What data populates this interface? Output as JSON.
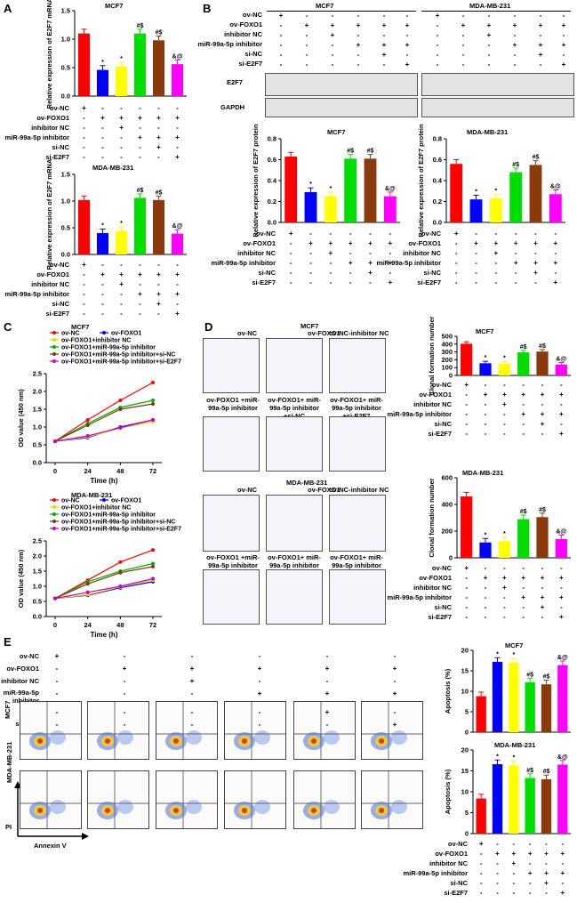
{
  "panels": {
    "A": "A",
    "B": "B",
    "C": "C",
    "D": "D",
    "E": "E"
  },
  "colors": {
    "nc": "#ff0000",
    "foxo1": "#0000ff",
    "inhnc": "#ffff00",
    "inh": "#00dd00",
    "sinc": "#8b3a0e",
    "sie2f7": "#ff00ff"
  },
  "row_labels": {
    "ov_nc": "ov-NC",
    "ov_foxo1": "ov-FOXO1",
    "inh_nc": "inhibitor NC",
    "inh": "miR-99a-5p inhibitor",
    "si_nc": "si-NC",
    "si_e2f7": "si-E2F7"
  },
  "lines": {
    "MCF7": "MCF7",
    "MDA": "MDA-MB-231"
  },
  "A": {
    "ylabel": "Relative expression of E2F7 mRNA",
    "mcf7": {
      "values": [
        1.1,
        0.46,
        0.52,
        1.1,
        0.98,
        0.56
      ],
      "ticks": [
        "0.0",
        "0.5",
        "1.0",
        "1.5"
      ],
      "ann": [
        "",
        "*",
        "*",
        "#$",
        "#$",
        "&@"
      ]
    },
    "mda": {
      "values": [
        1.02,
        0.4,
        0.44,
        1.06,
        1.02,
        0.39
      ],
      "ticks": [
        "0.0",
        "0.5",
        "1.0",
        "1.5"
      ],
      "ann": [
        "",
        "*",
        "*",
        "#$",
        "#$",
        "&@"
      ]
    }
  },
  "B": {
    "bands": [
      "E2F7",
      "GAPDH"
    ],
    "ylabel": "Relative expression of E2F7 protein",
    "mcf7": {
      "values": [
        0.63,
        0.29,
        0.25,
        0.61,
        0.61,
        0.25
      ],
      "ticks": [
        "0.0",
        "0.2",
        "0.4",
        "0.6",
        "0.8"
      ],
      "ann": [
        "",
        "*",
        "*",
        "#$",
        "#$",
        "&@"
      ]
    },
    "mda": {
      "values": [
        0.56,
        0.22,
        0.23,
        0.48,
        0.55,
        0.27
      ],
      "ticks": [
        "0.0",
        "0.2",
        "0.4",
        "0.6",
        "0.8"
      ],
      "ann": [
        "",
        "*",
        "*",
        "#$",
        "#$",
        "&@"
      ]
    }
  },
  "C": {
    "xlabel": "Time (h)",
    "ylabel": "OD value (450 nm)",
    "xticks": [
      "0",
      "24",
      "48",
      "72"
    ],
    "yticks": [
      "0.0",
      "0.5",
      "1.0",
      "1.5",
      "2.0",
      "2.5"
    ],
    "legend": [
      "ov-NC",
      "ov-FOXO1",
      "ov-FOXO1+inhibitor NC",
      "ov-FOXO1+miR-99a-5p inhibitor",
      "ov-FOXO1+miR-99a-5p inhibitor+si-NC",
      "ov-FOXO1+miR-99a-5p inhibitor+si-E2F7"
    ],
    "mcf7_series": [
      [
        0.6,
        1.2,
        1.75,
        2.25
      ],
      [
        0.6,
        0.7,
        1.0,
        1.2
      ],
      [
        0.6,
        0.72,
        0.97,
        1.15
      ],
      [
        0.6,
        1.1,
        1.55,
        1.75
      ],
      [
        0.6,
        1.05,
        1.5,
        1.65
      ],
      [
        0.6,
        0.75,
        0.98,
        1.2
      ]
    ],
    "mda_series": [
      [
        0.6,
        1.2,
        1.8,
        2.2
      ],
      [
        0.6,
        0.7,
        0.95,
        1.15
      ],
      [
        0.6,
        0.72,
        0.98,
        1.2
      ],
      [
        0.6,
        1.15,
        1.5,
        1.75
      ],
      [
        0.6,
        1.08,
        1.45,
        1.65
      ],
      [
        0.6,
        0.8,
        1.0,
        1.25
      ]
    ]
  },
  "D": {
    "top_labels": [
      "ov-NC",
      "ov-FOXO1",
      "ov-NC-inhibitor NC"
    ],
    "bottom_labels": [
      "ov-FOXO1 +miR-99a-5p inhibitor",
      "ov-FOXO1+ miR-99a-5p inhibitor +si-NC",
      "ov-FOXO1+ miR-99a-5p inhibitor +si-E2F7"
    ],
    "ylabel": "Clonal formation number",
    "mcf7": {
      "values": [
        405,
        155,
        150,
        295,
        305,
        140
      ],
      "ticks": [
        "0",
        "100",
        "200",
        "300",
        "400",
        "500"
      ],
      "ann": [
        "",
        "*",
        "*",
        "#$",
        "#$",
        "&@"
      ]
    },
    "mda": {
      "values": [
        460,
        115,
        125,
        290,
        305,
        140
      ],
      "ticks": [
        "0",
        "200",
        "400",
        "600"
      ],
      "ann": [
        "",
        "*",
        "*",
        "#$",
        "#$",
        "&@"
      ]
    }
  },
  "E": {
    "inh_label": "miR-99a-5p inhibitor",
    "ylabel": "Apoptosis (%)",
    "pi": "PI",
    "annexin": "Annexin V",
    "mcf7": {
      "values": [
        8.8,
        17.2,
        17.0,
        12.2,
        11.7,
        16.4
      ],
      "ticks": [
        "0",
        "5",
        "10",
        "15",
        "20"
      ],
      "ann": [
        "",
        "*",
        "*",
        "#$",
        "#$",
        "&@"
      ]
    },
    "mda": {
      "values": [
        8.4,
        16.6,
        16.3,
        13.3,
        13.0,
        16.5
      ],
      "ticks": [
        "0",
        "5",
        "10",
        "15",
        "20"
      ],
      "ann": [
        "",
        "*",
        "*",
        "#$",
        "#$",
        "&@"
      ]
    }
  },
  "signs": {
    "A": [
      [
        "+",
        "-",
        "-",
        "-",
        "-",
        "-"
      ],
      [
        "-",
        "+",
        "+",
        "+",
        "+",
        "+"
      ],
      [
        "-",
        "-",
        "+",
        "-",
        "-",
        "-"
      ],
      [
        "-",
        "-",
        "-",
        "+",
        "+",
        "+"
      ],
      [
        "-",
        "-",
        "-",
        "-",
        "+",
        "-"
      ],
      [
        "-",
        "-",
        "-",
        "-",
        "-",
        "+"
      ]
    ]
  }
}
